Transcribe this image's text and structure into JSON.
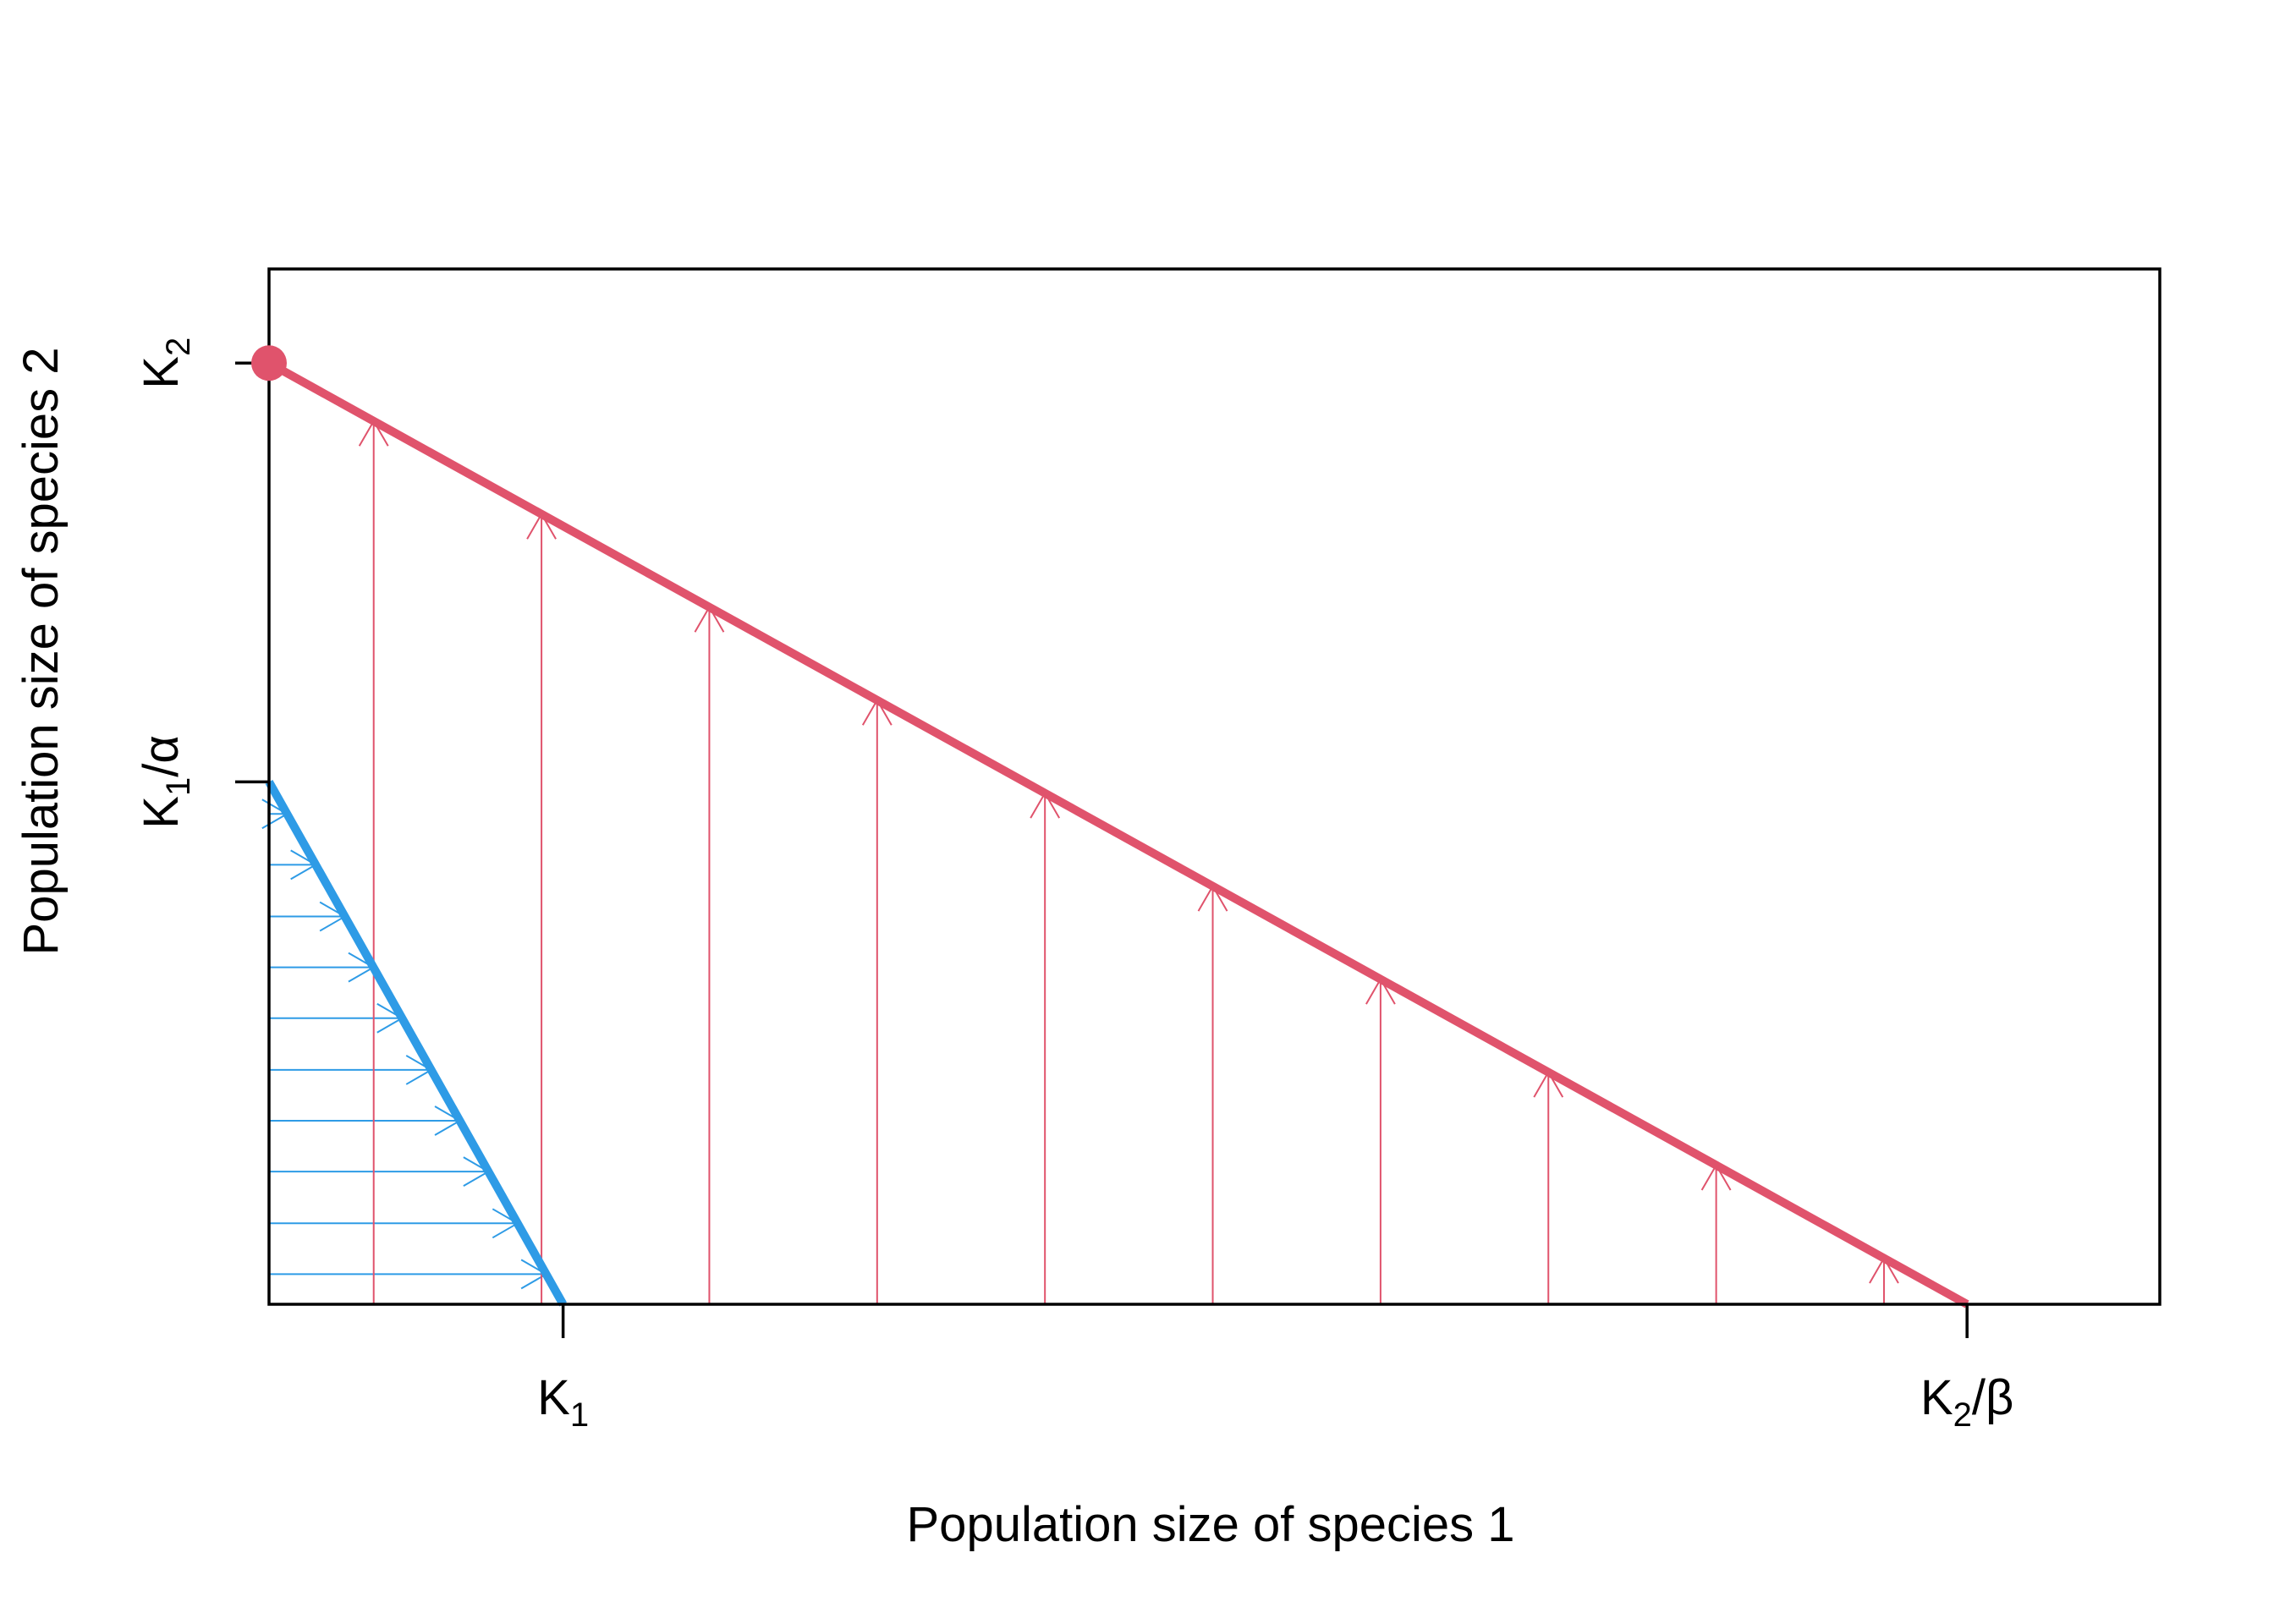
{
  "chart_data": {
    "type": "line",
    "title": "",
    "xlabel": "Population size of species 1",
    "ylabel": "Population size of species 2",
    "xlim": [
      -0.022,
      1.116
    ],
    "ylim": [
      0,
      1.1
    ],
    "grid": false,
    "legend": "none",
    "x_ticks": [
      {
        "value": 0.155,
        "base": "K",
        "sub": "1",
        "suffix": ""
      },
      {
        "value": 1.0,
        "base": "K",
        "sub": "2",
        "suffix": "/β"
      }
    ],
    "y_ticks": [
      {
        "value": 1.0,
        "base": "K",
        "sub": "2",
        "suffix": ""
      },
      {
        "value": 0.555,
        "base": "K",
        "sub": "1",
        "suffix": "/α"
      }
    ],
    "series": [
      {
        "role": "species-1-isocline",
        "color": "#2e9be6",
        "points": [
          [
            -0.022,
            0.555
          ],
          [
            0.155,
            0
          ]
        ],
        "arrows": {
          "direction": "right",
          "from_x": -0.022,
          "y": [
            0.032,
            0.086,
            0.141,
            0.195,
            0.249,
            0.304,
            0.358,
            0.412,
            0.467,
            0.521
          ]
        }
      },
      {
        "role": "species-2-isocline",
        "color": "#e0536c",
        "points": [
          [
            -0.022,
            1.0
          ],
          [
            1.0,
            0
          ]
        ],
        "arrows": {
          "direction": "up",
          "from_y": 0,
          "x": [
            0.041,
            0.142,
            0.243,
            0.344,
            0.445,
            0.546,
            0.647,
            0.748,
            0.849,
            0.95
          ]
        }
      }
    ],
    "points": [
      {
        "x": -0.022,
        "y": 1.0,
        "color": "#e0536c"
      }
    ]
  }
}
